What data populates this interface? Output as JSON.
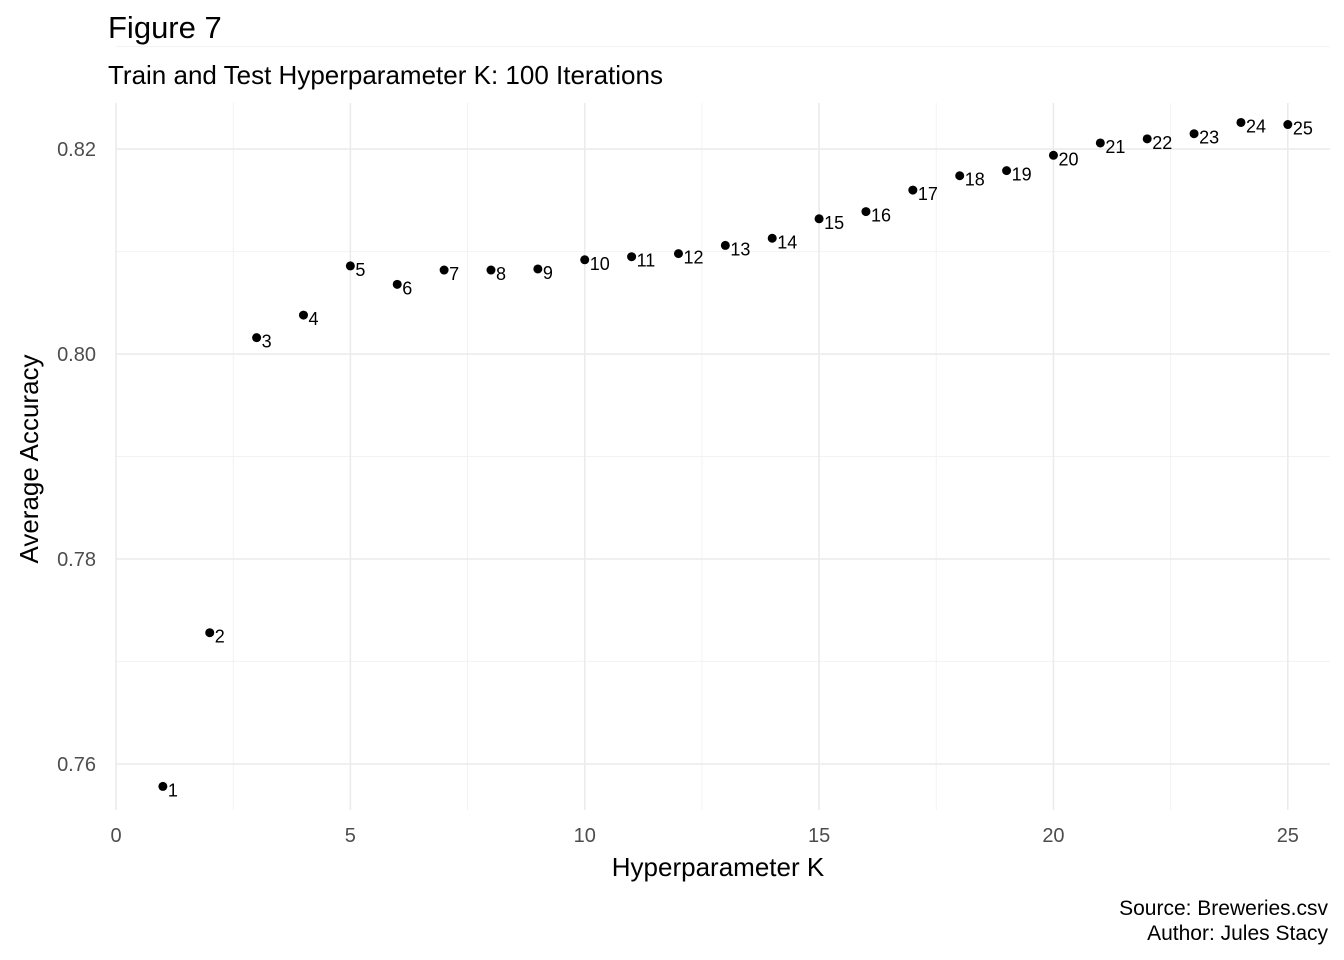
{
  "title": "Figure 7",
  "subtitle": "Train and Test Hyperparameter K: 100 Iterations",
  "caption": {
    "line1": "Source: Breweries.csv",
    "line2": "Author: Jules Stacy"
  },
  "chart_data": {
    "type": "scatter",
    "xlabel": "Hyperparameter K",
    "ylabel": "Average Accuracy",
    "xlim": [
      0,
      25.9
    ],
    "ylim": [
      0.7555,
      0.8245
    ],
    "x_ticks": [
      0,
      5,
      10,
      15,
      20,
      25
    ],
    "y_ticks": [
      0.76,
      0.78,
      0.8,
      0.82
    ],
    "grid": true,
    "x": [
      1,
      2,
      3,
      4,
      5,
      6,
      7,
      8,
      9,
      10,
      11,
      12,
      13,
      14,
      15,
      16,
      17,
      18,
      19,
      20,
      21,
      22,
      23,
      24,
      25
    ],
    "y": [
      0.7578,
      0.7728,
      0.8016,
      0.8038,
      0.8086,
      0.8068,
      0.8082,
      0.8082,
      0.8083,
      0.8092,
      0.8095,
      0.8098,
      0.8106,
      0.8113,
      0.8132,
      0.8139,
      0.816,
      0.8174,
      0.8179,
      0.8194,
      0.8206,
      0.821,
      0.8215,
      0.8226,
      0.8224
    ],
    "point_labels": [
      "1",
      "2",
      "3",
      "4",
      "5",
      "6",
      "7",
      "8",
      "9",
      "10",
      "11",
      "12",
      "13",
      "14",
      "15",
      "16",
      "17",
      "18",
      "19",
      "20",
      "21",
      "22",
      "23",
      "24",
      "25"
    ]
  }
}
